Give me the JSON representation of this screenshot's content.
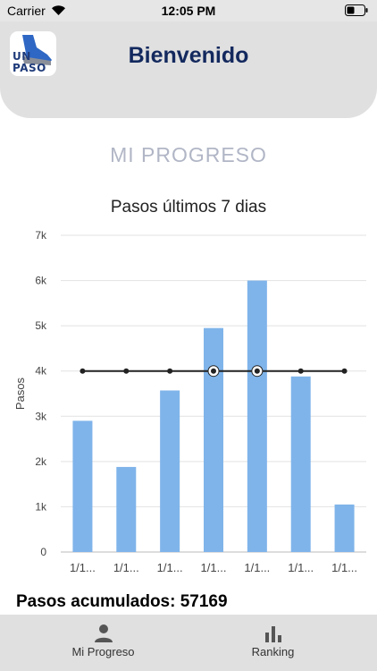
{
  "status_bar": {
    "carrier": "Carrier",
    "time": "12:05 PM",
    "wifi_icon": "wifi-icon",
    "battery_icon": "battery-icon"
  },
  "header": {
    "logo_line1": "UN",
    "logo_line2": "PASO",
    "title": "Bienvenido"
  },
  "section_title": "MI PROGRESO",
  "chart_data": {
    "type": "bar",
    "title": "Pasos últimos 7 dias",
    "xlabel": "",
    "ylabel": "Pasos",
    "ylim": [
      0,
      7000
    ],
    "y_ticks": [
      "0",
      "1k",
      "2k",
      "3k",
      "4k",
      "5k",
      "6k",
      "7k"
    ],
    "grid": true,
    "categories": [
      "1/1...",
      "1/1...",
      "1/1...",
      "1/1...",
      "1/1...",
      "1/1...",
      "1/1..."
    ],
    "series": [
      {
        "values": [
          2900,
          1880,
          3570,
          4950,
          6000,
          3880,
          1050
        ],
        "color": "#7fb4ea"
      }
    ],
    "reference_line": {
      "value": 4000,
      "color": "#222222"
    }
  },
  "totals": {
    "label": "Pasos acumulados: 57169"
  },
  "tabs": [
    {
      "label": "Mi Progreso",
      "icon": "person-icon"
    },
    {
      "label": "Ranking",
      "icon": "bar-chart-icon"
    }
  ]
}
